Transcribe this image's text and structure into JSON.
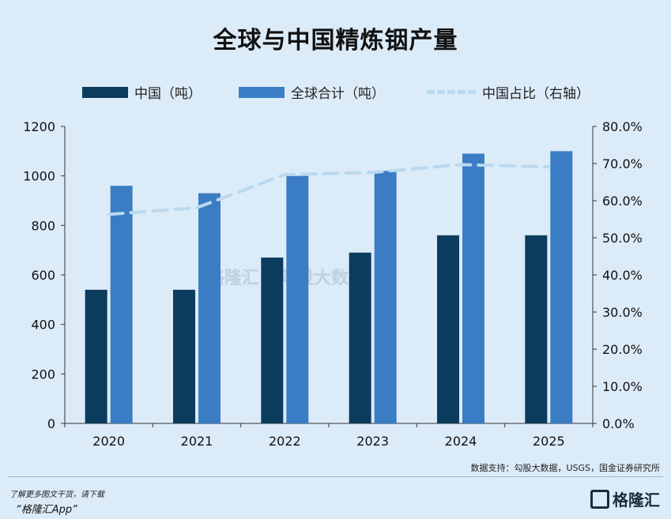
{
  "chart_data": {
    "type": "bar",
    "title": "全球与中国精炼铟产量",
    "categories": [
      "2020",
      "2021",
      "2022",
      "2023",
      "2024",
      "2025"
    ],
    "series": [
      {
        "name": "中国（吨）",
        "kind": "bar",
        "axis": "left",
        "color": "#0b3c5d",
        "values": [
          540,
          540,
          670,
          690,
          760,
          760
        ]
      },
      {
        "name": "全球合计（吨）",
        "kind": "bar",
        "axis": "left",
        "color": "#3b7dc4",
        "values": [
          960,
          930,
          1000,
          1020,
          1090,
          1100
        ]
      },
      {
        "name": "中国占比（右轴）",
        "kind": "line",
        "axis": "right",
        "color": "#b9d9ef",
        "values": [
          56.3,
          58.1,
          67.0,
          67.6,
          69.7,
          69.1
        ]
      }
    ],
    "y_left": {
      "min": 0,
      "max": 1200,
      "ticks": [
        "0",
        "200",
        "400",
        "600",
        "800",
        "1000",
        "1200"
      ]
    },
    "y_right": {
      "min": 0,
      "max": 80,
      "ticks": [
        "0.0%",
        "10.0%",
        "20.0%",
        "30.0%",
        "40.0%",
        "50.0%",
        "60.0%",
        "70.0%",
        "80.0%"
      ]
    },
    "legend_position": "top",
    "grid": false
  },
  "source": "数据支持：勾股大数据，USGS，国金证券研究所",
  "footer": {
    "line1": "了解更多图文干货，请下载",
    "line2": "“格隆汇App”",
    "logo_text": "格隆汇"
  },
  "watermark": {
    "brand": "格隆汇",
    "partner": "勾股大数据"
  }
}
